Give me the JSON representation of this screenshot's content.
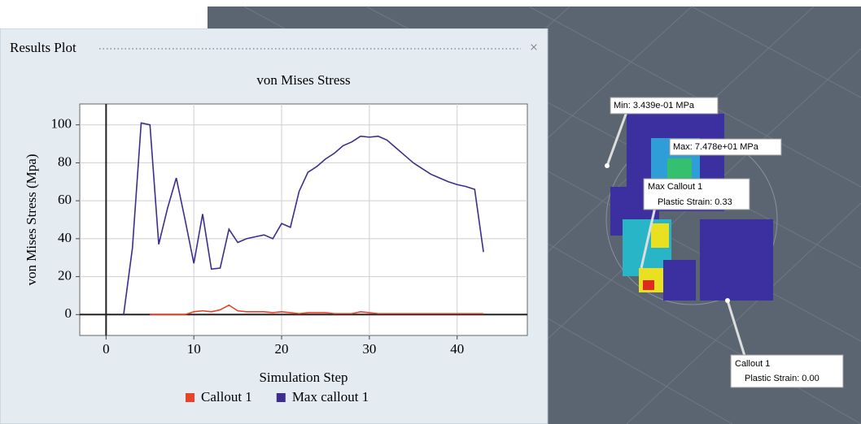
{
  "panel_title": "Results Plot",
  "chart_data": {
    "type": "line",
    "title": "von Mises Stress",
    "x_label": "Simulation Step",
    "y_label": "von Mises Stress (Mpa)",
    "x": [
      2,
      3,
      4,
      5,
      6,
      7,
      8,
      9,
      10,
      11,
      12,
      13,
      14,
      15,
      16,
      17,
      18,
      19,
      20,
      21,
      22,
      23,
      24,
      25,
      26,
      27,
      28,
      29,
      30,
      31,
      32,
      33,
      34,
      35,
      36,
      37,
      38,
      39,
      40,
      41,
      42,
      43
    ],
    "series": [
      {
        "name": "Callout 1",
        "color": "#e8432a",
        "values": [
          null,
          null,
          null,
          0,
          0,
          0,
          0,
          0,
          1.5,
          2,
          1.5,
          2.5,
          5,
          2,
          1.5,
          1.5,
          1.5,
          1,
          1.5,
          1,
          0.5,
          1,
          1,
          1,
          0.5,
          0.5,
          0.5,
          1.5,
          1,
          0.5,
          0.5,
          0.5,
          0.5,
          0.5,
          0.5,
          0.5,
          0.5,
          0.5,
          0.5,
          0.5,
          0.5,
          0.5
        ]
      },
      {
        "name": "Max callout 1",
        "color": "#3b2e8c",
        "values": [
          0,
          35,
          101,
          100,
          37,
          56,
          72,
          50,
          27,
          53,
          24,
          24.5,
          45,
          38,
          40,
          41,
          42,
          40,
          48,
          46,
          65,
          75,
          78,
          82,
          85,
          89,
          91,
          94,
          93.5,
          94,
          92,
          88,
          84,
          80,
          77,
          74,
          72,
          70,
          68.5,
          67.5,
          66,
          33
        ]
      }
    ],
    "xlim": [
      -3,
      48
    ],
    "ylim": [
      -11,
      111
    ],
    "xticks": [
      0,
      10,
      20,
      30,
      40
    ],
    "yticks": [
      0,
      20,
      40,
      60,
      80,
      100
    ],
    "grid": true
  },
  "viewport": {
    "labels": [
      {
        "title": "Min: 3.439e-01 MPa"
      },
      {
        "title": "Max: 7.478e+01 MPa"
      },
      {
        "title": "Max Callout 1",
        "detail": "Plastic Strain: 0.33"
      },
      {
        "title": "Callout 1",
        "detail": "Plastic Strain: 0.00"
      }
    ]
  }
}
